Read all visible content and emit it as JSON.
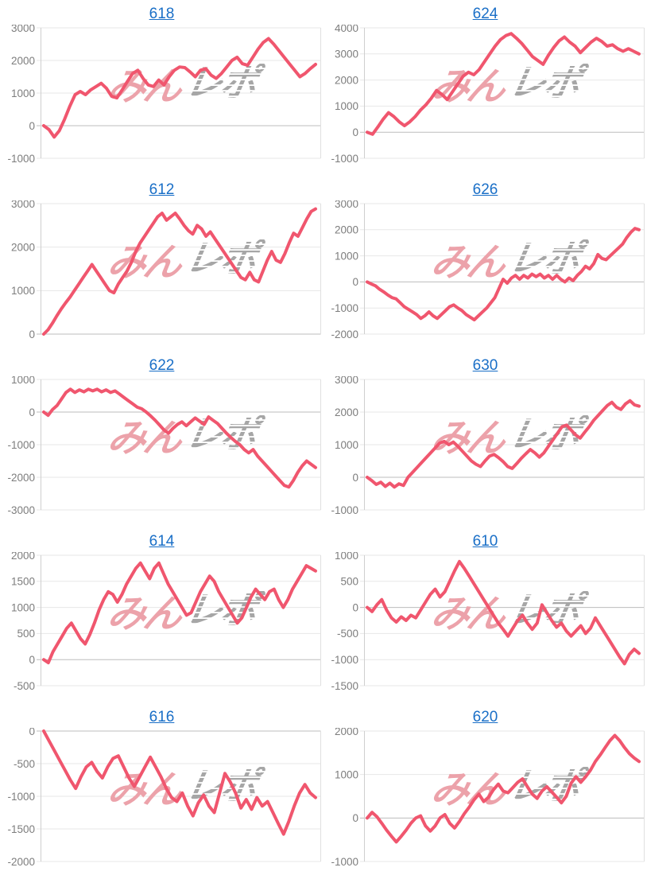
{
  "page": {
    "background": "#ffffff"
  },
  "style": {
    "line_color": "#F0566E",
    "title_color": "#1A6FC7",
    "label_color": "#7D7D7D",
    "grid_color": "#E7E7E7",
    "zero_line_color": "#BDBDBD",
    "axis_color": "#CFCFCF",
    "right_border_color": "#E0E0E0"
  },
  "watermark": {
    "pink_text": "みん",
    "gray_text": "レポ",
    "pink_color": "#ECA2AA",
    "gray_color": "#A6A6A6"
  },
  "chart_data": [
    {
      "type": "line",
      "title": "618",
      "xlabel": "",
      "ylabel": "",
      "grid": true,
      "ylim": [
        -1000,
        3000
      ],
      "yticks": [
        3000,
        2000,
        1000,
        0,
        -1000
      ],
      "values": [
        0,
        -120,
        -350,
        -150,
        200,
        600,
        950,
        1050,
        950,
        1100,
        1200,
        1300,
        1150,
        900,
        850,
        1100,
        1350,
        1600,
        1700,
        1450,
        1250,
        1200,
        1400,
        1250,
        1500,
        1700,
        1800,
        1780,
        1650,
        1500,
        1700,
        1750,
        1550,
        1450,
        1600,
        1800,
        2000,
        2100,
        1900,
        1850,
        2100,
        2350,
        2550,
        2670,
        2500,
        2300,
        2100,
        1900,
        1700,
        1500,
        1600,
        1750,
        1880
      ]
    },
    {
      "type": "line",
      "title": "624",
      "xlabel": "",
      "ylabel": "",
      "grid": true,
      "ylim": [
        -1000,
        4000
      ],
      "yticks": [
        4000,
        3000,
        2000,
        1000,
        0,
        -1000
      ],
      "values": [
        0,
        -80,
        200,
        500,
        750,
        600,
        400,
        250,
        400,
        600,
        850,
        1050,
        1300,
        1600,
        1450,
        1250,
        1550,
        1850,
        2150,
        2300,
        2200,
        2400,
        2700,
        3000,
        3300,
        3550,
        3700,
        3780,
        3600,
        3400,
        3150,
        2900,
        2750,
        2600,
        2950,
        3250,
        3500,
        3650,
        3450,
        3300,
        3050,
        3250,
        3450,
        3600,
        3480,
        3300,
        3350,
        3200,
        3100,
        3200,
        3100,
        3000
      ]
    },
    {
      "type": "line",
      "title": "612",
      "xlabel": "",
      "ylabel": "",
      "grid": true,
      "ylim": [
        0,
        3000
      ],
      "yticks": [
        3000,
        2000,
        1000,
        0
      ],
      "values": [
        0,
        100,
        250,
        420,
        580,
        720,
        850,
        1000,
        1150,
        1300,
        1450,
        1600,
        1450,
        1300,
        1150,
        1000,
        950,
        1150,
        1300,
        1450,
        1650,
        1900,
        2100,
        2250,
        2400,
        2550,
        2700,
        2780,
        2620,
        2700,
        2780,
        2650,
        2500,
        2380,
        2300,
        2500,
        2420,
        2250,
        2350,
        2200,
        2050,
        1900,
        1750,
        1600,
        1450,
        1300,
        1250,
        1420,
        1250,
        1200,
        1450,
        1700,
        1900,
        1700,
        1650,
        1850,
        2100,
        2320,
        2250,
        2450,
        2650,
        2820,
        2880
      ]
    },
    {
      "type": "line",
      "title": "626",
      "xlabel": "",
      "ylabel": "",
      "grid": true,
      "ylim": [
        -2000,
        3000
      ],
      "yticks": [
        3000,
        2000,
        1000,
        0,
        -1000,
        -2000
      ],
      "values": [
        0,
        -80,
        -150,
        -280,
        -380,
        -500,
        -600,
        -650,
        -800,
        -950,
        -1050,
        -1150,
        -1250,
        -1400,
        -1300,
        -1150,
        -1300,
        -1400,
        -1250,
        -1100,
        -950,
        -880,
        -1000,
        -1100,
        -1250,
        -1350,
        -1450,
        -1300,
        -1150,
        -1000,
        -800,
        -600,
        -250,
        100,
        -50,
        150,
        250,
        100,
        250,
        150,
        300,
        200,
        300,
        150,
        250,
        100,
        250,
        100,
        0,
        150,
        50,
        250,
        400,
        600,
        500,
        700,
        1050,
        900,
        850,
        1000,
        1150,
        1300,
        1450,
        1700,
        1900,
        2050,
        2000
      ]
    },
    {
      "type": "line",
      "title": "622",
      "xlabel": "",
      "ylabel": "",
      "grid": true,
      "ylim": [
        -3000,
        1000
      ],
      "yticks": [
        1000,
        0,
        -1000,
        -2000,
        -3000
      ],
      "values": [
        0,
        -100,
        80,
        200,
        400,
        600,
        700,
        600,
        680,
        620,
        700,
        650,
        700,
        620,
        680,
        600,
        650,
        550,
        450,
        350,
        250,
        150,
        100,
        0,
        -120,
        -250,
        -400,
        -550,
        -650,
        -500,
        -380,
        -300,
        -420,
        -300,
        -180,
        -280,
        -380,
        -150,
        -250,
        -350,
        -500,
        -650,
        -780,
        -900,
        -1000,
        -1150,
        -1250,
        -1150,
        -1350,
        -1500,
        -1650,
        -1800,
        -1950,
        -2100,
        -2250,
        -2300,
        -2100,
        -1850,
        -1650,
        -1500,
        -1600,
        -1700
      ]
    },
    {
      "type": "line",
      "title": "630",
      "xlabel": "",
      "ylabel": "",
      "grid": true,
      "ylim": [
        -1000,
        3000
      ],
      "yticks": [
        3000,
        2000,
        1000,
        0,
        -1000
      ],
      "values": [
        0,
        -100,
        -220,
        -150,
        -280,
        -180,
        -300,
        -200,
        -250,
        0,
        150,
        300,
        450,
        600,
        750,
        900,
        1050,
        1100,
        1000,
        1080,
        950,
        800,
        650,
        500,
        400,
        330,
        500,
        650,
        700,
        600,
        480,
        330,
        270,
        420,
        580,
        720,
        850,
        750,
        620,
        750,
        950,
        1150,
        1350,
        1550,
        1600,
        1450,
        1300,
        1200,
        1380,
        1550,
        1750,
        1900,
        2050,
        2200,
        2300,
        2150,
        2080,
        2250,
        2350,
        2220,
        2180
      ]
    },
    {
      "type": "line",
      "title": "614",
      "xlabel": "",
      "ylabel": "",
      "grid": true,
      "ylim": [
        -500,
        2000
      ],
      "yticks": [
        2000,
        1500,
        1000,
        500,
        0,
        -500
      ],
      "values": [
        0,
        -60,
        150,
        300,
        450,
        600,
        700,
        550,
        400,
        300,
        480,
        700,
        950,
        1150,
        1300,
        1250,
        1100,
        1250,
        1450,
        1600,
        1750,
        1850,
        1700,
        1550,
        1750,
        1850,
        1650,
        1450,
        1300,
        1150,
        1000,
        850,
        900,
        1100,
        1300,
        1450,
        1600,
        1500,
        1300,
        1150,
        1000,
        850,
        700,
        800,
        1000,
        1200,
        1350,
        1250,
        1150,
        1300,
        1350,
        1150,
        1000,
        1150,
        1350,
        1500,
        1650,
        1800,
        1750,
        1700
      ]
    },
    {
      "type": "line",
      "title": "610",
      "xlabel": "",
      "ylabel": "",
      "grid": true,
      "ylim": [
        -1500,
        1000
      ],
      "yticks": [
        1000,
        500,
        0,
        -500,
        -1000,
        -1500
      ],
      "values": [
        0,
        -80,
        50,
        150,
        -50,
        -200,
        -280,
        -180,
        -250,
        -150,
        -200,
        -50,
        100,
        250,
        350,
        200,
        300,
        500,
        700,
        880,
        750,
        600,
        450,
        300,
        150,
        0,
        -150,
        -300,
        -420,
        -550,
        -400,
        -250,
        -150,
        -300,
        -420,
        -300,
        50,
        -100,
        -250,
        -380,
        -300,
        -450,
        -550,
        -450,
        -350,
        -500,
        -400,
        -200,
        -350,
        -500,
        -650,
        -800,
        -950,
        -1080,
        -900,
        -800,
        -880
      ]
    },
    {
      "type": "line",
      "title": "616",
      "xlabel": "",
      "ylabel": "",
      "grid": true,
      "ylim": [
        -2000,
        0
      ],
      "yticks": [
        0,
        -500,
        -1000,
        -1500,
        -2000
      ],
      "values": [
        0,
        -150,
        -300,
        -450,
        -600,
        -750,
        -880,
        -700,
        -550,
        -480,
        -620,
        -720,
        -550,
        -420,
        -380,
        -550,
        -720,
        -850,
        -700,
        -550,
        -400,
        -550,
        -700,
        -880,
        -1020,
        -1080,
        -950,
        -1150,
        -1300,
        -1100,
        -980,
        -1150,
        -1250,
        -950,
        -650,
        -780,
        -950,
        -1180,
        -1050,
        -1200,
        -1020,
        -1150,
        -1080,
        -1250,
        -1420,
        -1580,
        -1380,
        -1150,
        -950,
        -820,
        -950,
        -1020
      ]
    },
    {
      "type": "line",
      "title": "620",
      "xlabel": "",
      "ylabel": "",
      "grid": true,
      "ylim": [
        -1000,
        2000
      ],
      "yticks": [
        2000,
        1000,
        0,
        -1000
      ],
      "values": [
        0,
        130,
        30,
        -120,
        -280,
        -420,
        -550,
        -420,
        -280,
        -120,
        0,
        50,
        -180,
        -300,
        -180,
        0,
        80,
        -120,
        -230,
        -80,
        100,
        250,
        420,
        550,
        380,
        480,
        650,
        780,
        620,
        580,
        700,
        820,
        900,
        720,
        550,
        450,
        620,
        720,
        600,
        480,
        350,
        500,
        800,
        950,
        820,
        950,
        1100,
        1300,
        1450,
        1620,
        1780,
        1900,
        1780,
        1620,
        1480,
        1380,
        1300
      ]
    }
  ]
}
